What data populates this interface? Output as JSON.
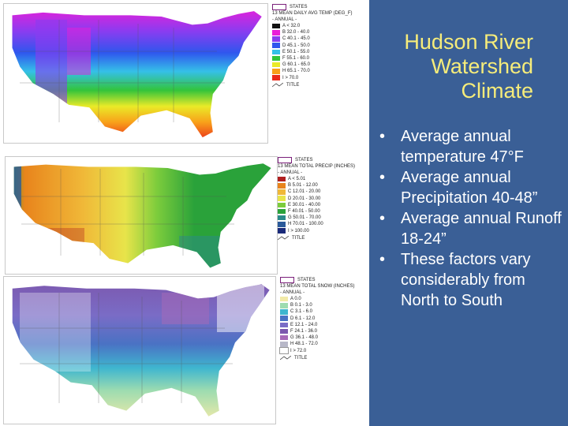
{
  "slide": {
    "title_lines": [
      "Hudson River",
      "Watershed",
      "Climate"
    ],
    "bullets": [
      "Average annual temperature 47°F",
      "Average annual Precipitation 40-48”",
      "Average annual Runoff 18-24”",
      "These factors vary considerably from North to South"
    ],
    "bullet_glyph": "•",
    "colors": {
      "background": "#3a5f96",
      "title": "#f6ec7a",
      "text": "#ffffff"
    }
  },
  "maps": [
    {
      "states_label": "STATES",
      "legend_title": "13 MEAN DAILY AVG TEMP (DEG_F)",
      "annual_label": "- ANNUAL -",
      "classes": [
        {
          "label": "A < 32.0",
          "color": "#111111"
        },
        {
          "label": "B 32.0 - 40.0",
          "color": "#ea1fd8"
        },
        {
          "label": "C 40.1 - 45.0",
          "color": "#8a3cf0"
        },
        {
          "label": "D 45.1 - 50.0",
          "color": "#2f56ee"
        },
        {
          "label": "E 50.1 - 55.0",
          "color": "#35c0e8"
        },
        {
          "label": "F 55.1 - 60.0",
          "color": "#33c43b"
        },
        {
          "label": "G 60.1 - 65.0",
          "color": "#eaea28"
        },
        {
          "label": "H 65.1 - 70.0",
          "color": "#f8a01a"
        },
        {
          "label": "I > 70.0",
          "color": "#ea2a1a"
        }
      ],
      "title_label": "TITLE"
    },
    {
      "states_label": "STATES",
      "legend_title": "13 MEAN TOTAL PRECIP (INCHES)",
      "annual_label": "- ANNUAL -",
      "classes": [
        {
          "label": "A < 5.01",
          "color": "#b02020"
        },
        {
          "label": "B 5.01 - 12.00",
          "color": "#e8841c"
        },
        {
          "label": "C 12.01 - 20.00",
          "color": "#f0b838"
        },
        {
          "label": "D 20.01 - 30.00",
          "color": "#e8e44a"
        },
        {
          "label": "E 30.01 - 40.00",
          "color": "#7ccc3c"
        },
        {
          "label": "F 40.01 - 50.00",
          "color": "#2aa23a"
        },
        {
          "label": "G 50.01 - 70.00",
          "color": "#2a8a8a"
        },
        {
          "label": "H 70.01 - 100.00",
          "color": "#2a5a9a"
        },
        {
          "label": "I > 100.00",
          "color": "#1a2a7a"
        }
      ],
      "title_label": "TITLE"
    },
    {
      "states_label": "STATES",
      "legend_title": "13 MEAN TOTAL SNOW (INCHES)",
      "annual_label": "- ANNUAL -",
      "classes": [
        {
          "label": "A 0.0",
          "color": "#f2eaa8"
        },
        {
          "label": "B 0.1 - 3.0",
          "color": "#9edcb0"
        },
        {
          "label": "C 3.1 - 6.0",
          "color": "#3fb6cf"
        },
        {
          "label": "D 6.1 - 12.0",
          "color": "#4a72c4"
        },
        {
          "label": "E 12.1 - 24.0",
          "color": "#7a6cc6"
        },
        {
          "label": "F 24.1 - 36.0",
          "color": "#7c58ae"
        },
        {
          "label": "G 36.1 - 48.0",
          "color": "#a86ab8"
        },
        {
          "label": "H 48.1 - 72.0",
          "color": "#b8b8c8"
        },
        {
          "label": "I > 72.0",
          "color": "#ffffff"
        }
      ],
      "title_label": "TITLE"
    }
  ]
}
